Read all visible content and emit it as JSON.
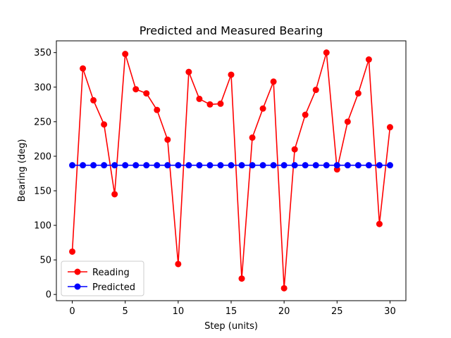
{
  "chart_data": {
    "type": "line",
    "title": "Predicted and Measured Bearing",
    "xlabel": "Step (units)",
    "ylabel": "Bearing (deg)",
    "xlim": [
      -1.5,
      31.5
    ],
    "ylim": [
      -9,
      367
    ],
    "xticks": [
      0,
      5,
      10,
      15,
      20,
      25,
      30
    ],
    "yticks": [
      0,
      50,
      100,
      150,
      200,
      250,
      300,
      350
    ],
    "grid": false,
    "legend_position": "lower left",
    "series": [
      {
        "name": "Reading",
        "color": "#ff0000",
        "marker": "circle",
        "x": [
          0,
          1,
          2,
          3,
          4,
          5,
          6,
          7,
          8,
          9,
          10,
          11,
          12,
          13,
          14,
          15,
          16,
          17,
          18,
          19,
          20,
          21,
          22,
          23,
          24,
          25,
          26,
          27,
          28,
          29,
          30
        ],
        "y": [
          62,
          327,
          281,
          246,
          145,
          348,
          297,
          291,
          267,
          224,
          44,
          322,
          283,
          275,
          276,
          318,
          23,
          227,
          269,
          308,
          9,
          210,
          260,
          296,
          350,
          181,
          250,
          291,
          340,
          102,
          242
        ]
      },
      {
        "name": "Predicted",
        "color": "#0000ff",
        "marker": "circle",
        "x": [
          0,
          1,
          2,
          3,
          4,
          5,
          6,
          7,
          8,
          9,
          10,
          11,
          12,
          13,
          14,
          15,
          16,
          17,
          18,
          19,
          20,
          21,
          22,
          23,
          24,
          25,
          26,
          27,
          28,
          29,
          30
        ],
        "y": [
          187,
          187,
          187,
          187,
          187,
          187,
          187,
          187,
          187,
          187,
          187,
          187,
          187,
          187,
          187,
          187,
          187,
          187,
          187,
          187,
          187,
          187,
          187,
          187,
          187,
          187,
          187,
          187,
          187,
          187,
          187
        ]
      }
    ]
  }
}
